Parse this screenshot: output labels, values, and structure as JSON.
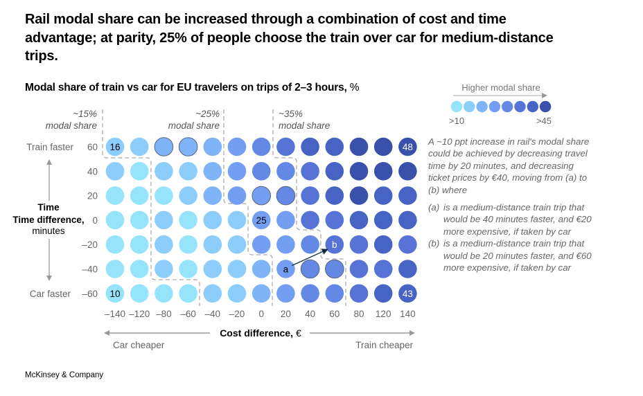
{
  "headline": "Rail modal share can be increased through a combination of cost and time advantage; at parity, 25% of people choose the train over car for medium-distance trips.",
  "subtitle": {
    "text": "Modal share of train vs car for EU travelers on trips of 2–3 hours,",
    "unit": "%"
  },
  "legend": {
    "title": "Higher modal share",
    "low_label": ">10",
    "high_label": ">45",
    "palette": [
      "#96e4fc",
      "#8dcdfc",
      "#80b4f8",
      "#739ef2",
      "#6489e4",
      "#5673d5",
      "#4763c3",
      "#3a51ab"
    ]
  },
  "zones": [
    {
      "pct": "~15%",
      "label": "modal share"
    },
    {
      "pct": "~25%",
      "label": "modal share"
    },
    {
      "pct": "~35%",
      "label": "modal share"
    }
  ],
  "note": {
    "intro": "A  ~10 ppt increase in rail's modal share could be achieved by decreasing travel time by 20 minutes, and decreasing ticket prices by €40, moving from (a) to (b) where",
    "items": [
      {
        "tag": "(a)",
        "text": "is a medium-distance train trip that would be 40 minutes faster, and €20 more expensive, if taken by car"
      },
      {
        "tag": "(b)",
        "text": "is a medium-distance train trip that would be 20 minutes faster, and €60 more expensive, if taken by car"
      }
    ]
  },
  "footer": "McKinsey & Company",
  "chart_data": {
    "type": "heatmap",
    "title": "Modal share of train vs car for EU travelers on trips of 2–3 hours, %",
    "xlabel": "Cost difference, €",
    "x_left_label": "Car cheaper",
    "x_right_label": "Train cheaper",
    "ylabel_bold": "Time difference,",
    "ylabel_unit": "minutes",
    "y_top_label": "Train faster",
    "y_bottom_label": "Car faster",
    "x": [
      "–140",
      "–120",
      "–80",
      "–60",
      "–40",
      "–20",
      "0",
      "20",
      "40",
      "60",
      "80",
      "120",
      "140"
    ],
    "y": [
      "60",
      "40",
      "20",
      "0",
      "–20",
      "–40",
      "–60"
    ],
    "color_levels": [
      [
        2,
        2,
        3,
        3,
        3,
        4,
        5,
        6,
        7,
        7,
        8,
        8,
        8
      ],
      [
        2,
        1,
        2,
        2,
        3,
        4,
        5,
        5,
        6,
        7,
        8,
        8,
        8
      ],
      [
        1,
        1,
        1,
        2,
        3,
        4,
        4,
        5,
        6,
        7,
        8,
        7,
        7
      ],
      [
        1,
        1,
        2,
        1,
        2,
        2,
        4,
        4,
        6,
        6,
        7,
        7,
        7
      ],
      [
        1,
        1,
        2,
        1,
        2,
        2,
        4,
        4,
        5,
        6,
        6,
        7,
        6
      ],
      [
        1,
        1,
        2,
        1,
        2,
        2,
        3,
        4,
        5,
        5,
        6,
        6,
        7
      ],
      [
        1,
        1,
        1,
        1,
        2,
        2,
        3,
        4,
        5,
        5,
        6,
        7,
        7
      ]
    ],
    "outlined_cells": [
      [
        0,
        2
      ],
      [
        0,
        3
      ],
      [
        2,
        6
      ],
      [
        2,
        7
      ],
      [
        5,
        8
      ],
      [
        5,
        9
      ]
    ],
    "labeled_cells": [
      {
        "row": 0,
        "col": 0,
        "text": "16",
        "dark_text": true
      },
      {
        "row": 0,
        "col": 12,
        "text": "48",
        "dark_text": false
      },
      {
        "row": 3,
        "col": 6,
        "text": "25",
        "dark_text": true
      },
      {
        "row": 6,
        "col": 0,
        "text": "10",
        "dark_text": true
      },
      {
        "row": 6,
        "col": 12,
        "text": "43",
        "dark_text": false
      },
      {
        "row": 5,
        "col": 7,
        "text": "a",
        "dark_text": true
      },
      {
        "row": 4,
        "col": 9,
        "text": "b",
        "dark_text": false
      }
    ],
    "arrow": {
      "from": "a",
      "to": "b"
    },
    "legend_position": "top-right"
  }
}
